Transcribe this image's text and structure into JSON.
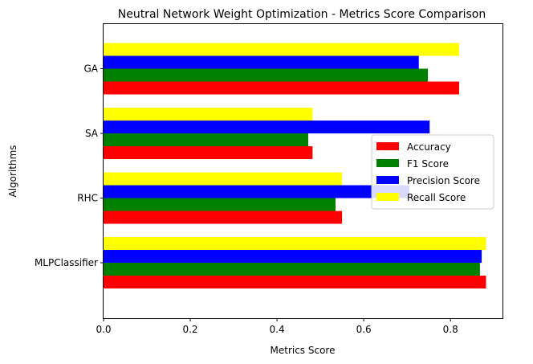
{
  "chart_data": {
    "type": "bar",
    "orientation": "horizontal",
    "title": "Neutral Network Weight Optimization - Metrics Score Comparison",
    "xlabel": "Metrics Score",
    "ylabel": "Algorithms",
    "categories": [
      "MLPClassifier",
      "RHC",
      "SA",
      "GA"
    ],
    "xlim": [
      0,
      0.92
    ],
    "xticks": [
      0.0,
      0.2,
      0.4,
      0.6,
      0.8
    ],
    "xtick_labels": [
      "0.0",
      "0.2",
      "0.4",
      "0.6",
      "0.8"
    ],
    "grid": false,
    "legend_position": "center-right",
    "series": [
      {
        "name": "Accuracy",
        "color": "#ff0000",
        "values": [
          0.882,
          0.55,
          0.482,
          0.82
        ]
      },
      {
        "name": "F1 Score",
        "color": "#008000",
        "values": [
          0.868,
          0.535,
          0.472,
          0.748
        ]
      },
      {
        "name": "Precision Score",
        "color": "#0000ff",
        "values": [
          0.872,
          0.705,
          0.752,
          0.727
        ]
      },
      {
        "name": "Recall Score",
        "color": "#ffff00",
        "values": [
          0.882,
          0.55,
          0.482,
          0.82
        ]
      }
    ]
  }
}
